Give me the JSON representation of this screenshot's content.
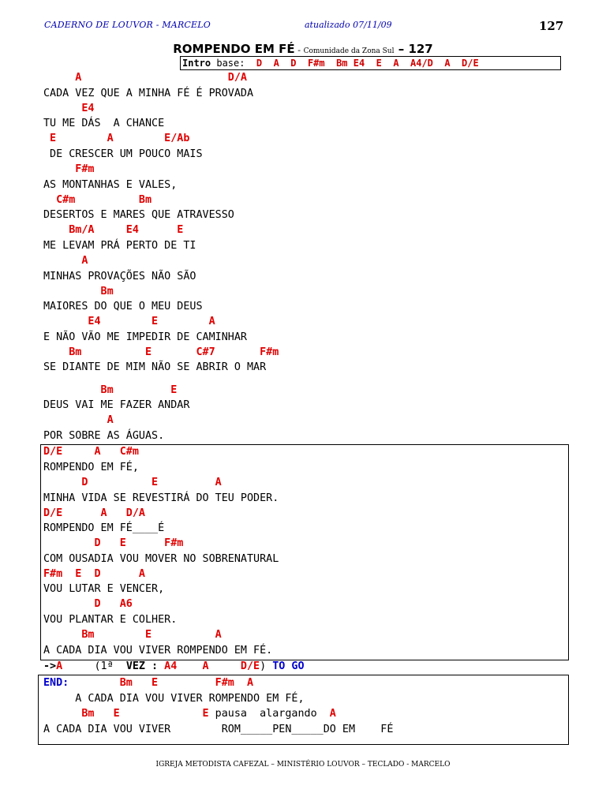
{
  "header": {
    "book": "CADERNO DE LOUVOR - MARCELO",
    "updated": "atualizado  07/11/09",
    "page_number": "127"
  },
  "song": {
    "title": "ROMPENDO EM FÉ",
    "dash1": " - ",
    "author": "Comunidade da Zona Sul",
    "dash2": " – ",
    "number": "127"
  },
  "intro": {
    "label": "Intro",
    "base": " base:",
    "chords": "  D  A  D  F#m  Bm E4  E  A  A4/D  A  D/E"
  },
  "verses": [
    {
      "chords": "     A                       D/A",
      "lyric": "CADA VEZ QUE A MINHA FÉ É PROVADA"
    },
    {
      "chords": "      E4",
      "lyric": "TU ME DÁS  A CHANCE"
    },
    {
      "chords": " E        A        E/Ab",
      "lyric": " DE CRESCER UM POUCO MAIS"
    },
    {
      "chords": "     F#m",
      "lyric": "AS MONTANHAS E VALES,"
    },
    {
      "chords": "  C#m          Bm",
      "lyric": "DESERTOS E MARES QUE ATRAVESSO"
    },
    {
      "chords": "    Bm/A     E4      E",
      "lyric": "ME LEVAM PRÁ PERTO DE TI"
    },
    {
      "chords": "      A",
      "lyric": "MINHAS PROVAÇÕES NÃO SÃO"
    },
    {
      "chords": "         Bm",
      "lyric": "MAIORES DO QUE O MEU DEUS"
    },
    {
      "chords": "       E4        E        A",
      "lyric": "E NÃO VÃO ME IMPEDIR DE CAMINHAR"
    },
    {
      "chords": "    Bm          E       C#7       F#m",
      "lyric": "SE DIANTE DE MIM NÃO SE ABRIR O MAR"
    }
  ],
  "verse2": [
    {
      "chords": "         Bm         E",
      "lyric": "DEUS VAI ME FAZER ANDAR"
    },
    {
      "chords": "          A",
      "lyric": "POR SOBRE AS ÁGUAS."
    }
  ],
  "chorus": [
    {
      "chords": "D/E     A   C#m",
      "lyric": "ROMPENDO EM FÉ,"
    },
    {
      "chords": "      D          E         A",
      "lyric": "MINHA VIDA SE REVESTIRÁ DO TEU PODER."
    },
    {
      "chords": "D/E      A   D/A",
      "lyric": "ROMPENDO EM FÉ____É"
    },
    {
      "chords": "        D   E      F#m",
      "lyric": "COM OUSADIA VOU MOVER NO SOBRENATURAL"
    },
    {
      "chords": "F#m  E  D      A",
      "lyric": "VOU LUTAR E VENCER,"
    },
    {
      "chords": "        D   A6",
      "lyric": "VOU PLANTAR E COLHER."
    },
    {
      "chords": "      Bm        E          A",
      "lyric": "A CADA DIA VOU VIVER ROMPENDO EM FÉ."
    }
  ],
  "goto": {
    "arrow": "->",
    "chord_a": "A",
    "paren_open": "     (1ª  ",
    "vez": "VEZ :",
    "chords": " A4    A     D/E",
    "paren_close": ")",
    "to_go": " TO GO"
  },
  "ending": {
    "label": "END:",
    "chords1": "        Bm   E         F#m  A",
    "lyric1": "     A CADA DIA VOU VIVER ROMPENDO EM FÉ,",
    "chords2": "      Bm   E             E",
    "direction": " pausa  alargando  ",
    "chord_last": "A",
    "lyric2": "A CADA DIA VOU VIVER        ROM_____PEN_____DO EM    FÉ"
  },
  "footer": "IGREJA METODISTA CAFEZAL – MINISTÉRIO LOUVOR – TECLADO - MARCELO",
  "colors": {
    "chord": "#e00000",
    "header": "#0000b0",
    "goto_blue": "#0000d0"
  }
}
